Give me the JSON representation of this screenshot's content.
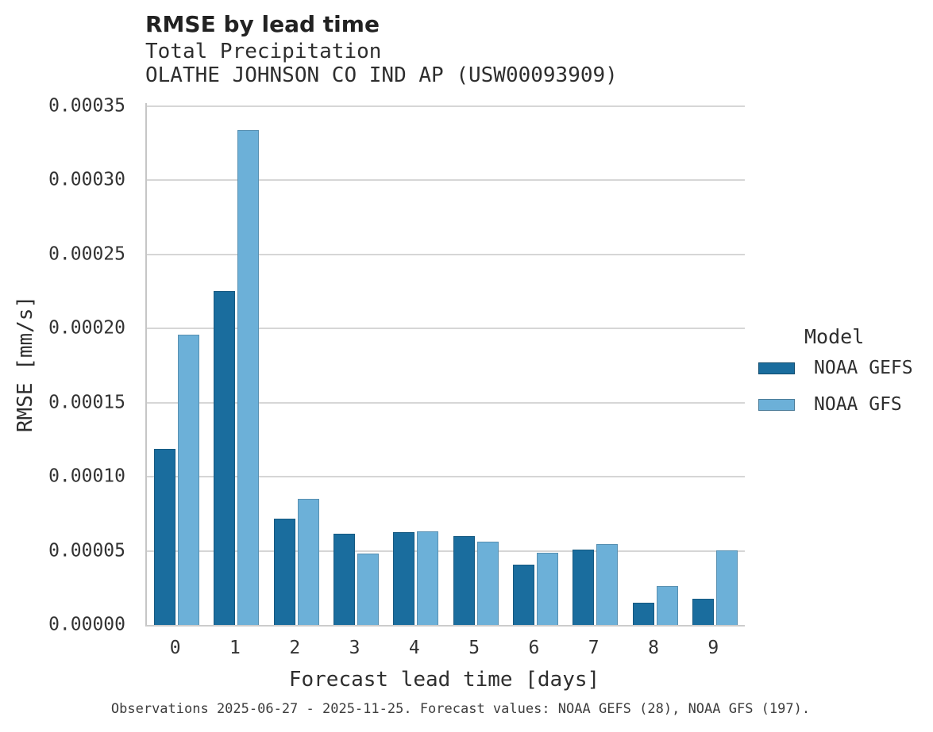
{
  "chart_data": {
    "type": "bar",
    "title": "RMSE by lead time",
    "subtitle": "Total Precipitation",
    "station": "OLATHE JOHNSON CO IND AP (USW00093909)",
    "xlabel": "Forecast lead time [days]",
    "ylabel": "RMSE [mm/s]",
    "categories": [
      "0",
      "1",
      "2",
      "3",
      "4",
      "5",
      "6",
      "7",
      "8",
      "9"
    ],
    "series": [
      {
        "name": "NOAA GEFS",
        "color": "#1a6d9e",
        "values": [
          0.000119,
          0.000225,
          7.17e-05,
          6.15e-05,
          6.28e-05,
          5.99e-05,
          4.07e-05,
          5.08e-05,
          1.5e-05,
          1.77e-05
        ]
      },
      {
        "name": "NOAA GFS",
        "color": "#6cb0d8",
        "values": [
          0.000196,
          0.000334,
          8.52e-05,
          4.83e-05,
          6.31e-05,
          5.62e-05,
          4.87e-05,
          5.46e-05,
          2.62e-05,
          5.03e-05
        ]
      }
    ],
    "ylim": [
      0,
      0.000352
    ],
    "ytick_labels": [
      "0.00000",
      "0.00005",
      "0.00010",
      "0.00015",
      "0.00020",
      "0.00025",
      "0.00030",
      "0.00035"
    ],
    "grid": true,
    "legend_title": "Model",
    "legend_position": "right",
    "caption": "Observations 2025-06-27 - 2025-11-25. Forecast values: NOAA GEFS (28), NOAA GFS (197)."
  }
}
